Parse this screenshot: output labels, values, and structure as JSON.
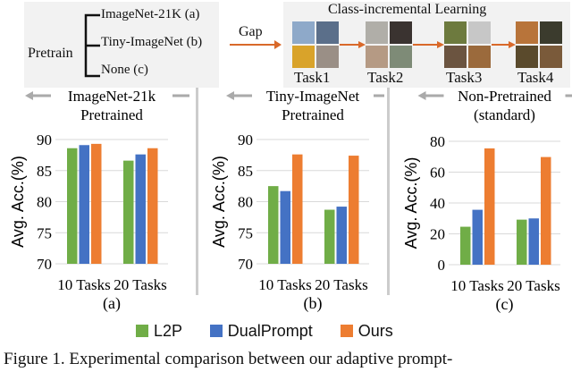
{
  "diagram": {
    "pretrain_label": "Pretrain",
    "pretrain_options": [
      "ImageNet-21K (a)",
      "Tiny-ImageNet (b)",
      "None (c)"
    ],
    "gap_label": "Gap",
    "cil_title": "Class-incremental Learning",
    "tasks": [
      "Task1",
      "Task2",
      "Task3",
      "Task4"
    ]
  },
  "panels": [
    {
      "title_line1": "ImageNet-21k",
      "title_line2": "Pretrained",
      "sublabel": "(a)"
    },
    {
      "title_line1": "Tiny-ImageNet",
      "title_line2": "Pretrained",
      "sublabel": "(b)"
    },
    {
      "title_line1": "Non-Pretrained",
      "title_line2": "(standard)",
      "sublabel": "(c)"
    }
  ],
  "colors": {
    "L2P": "#70ad47",
    "DualPrompt": "#4472c4",
    "Ours": "#ed7d31",
    "arrow": "#d9692a"
  },
  "chart_data": [
    {
      "type": "bar",
      "ylabel": "Avg. Acc.(%)",
      "ylim": [
        70,
        90
      ],
      "yticks": [
        70,
        75,
        80,
        85,
        90
      ],
      "grid": true,
      "categories": [
        "10 Tasks",
        "20 Tasks"
      ],
      "series": [
        {
          "name": "L2P",
          "values": [
            88.6,
            86.6
          ]
        },
        {
          "name": "DualPrompt",
          "values": [
            89.1,
            87.6
          ]
        },
        {
          "name": "Ours",
          "values": [
            89.3,
            88.6
          ]
        }
      ]
    },
    {
      "type": "bar",
      "ylabel": "Avg. Acc.(%)",
      "ylim": [
        70,
        90
      ],
      "yticks": [
        70,
        75,
        80,
        85,
        90
      ],
      "grid": true,
      "categories": [
        "10 Tasks",
        "20 Tasks"
      ],
      "series": [
        {
          "name": "L2P",
          "values": [
            82.5,
            78.7
          ]
        },
        {
          "name": "DualPrompt",
          "values": [
            81.7,
            79.2
          ]
        },
        {
          "name": "Ours",
          "values": [
            87.6,
            87.4
          ]
        }
      ]
    },
    {
      "type": "bar",
      "ylabel": "Avg. Acc.(%)",
      "ylim": [
        0,
        80
      ],
      "yticks": [
        0,
        20,
        40,
        60,
        80
      ],
      "grid": true,
      "categories": [
        "10 Tasks",
        "20 Tasks"
      ],
      "series": [
        {
          "name": "L2P",
          "values": [
            24.6,
            29.2
          ]
        },
        {
          "name": "DualPrompt",
          "values": [
            35.6,
            30.0
          ]
        },
        {
          "name": "Ours",
          "values": [
            75.4,
            69.8
          ]
        }
      ]
    }
  ],
  "legend": [
    "L2P",
    "DualPrompt",
    "Ours"
  ],
  "caption": "Figure 1.  Experimental comparison between our adaptive prompt-"
}
